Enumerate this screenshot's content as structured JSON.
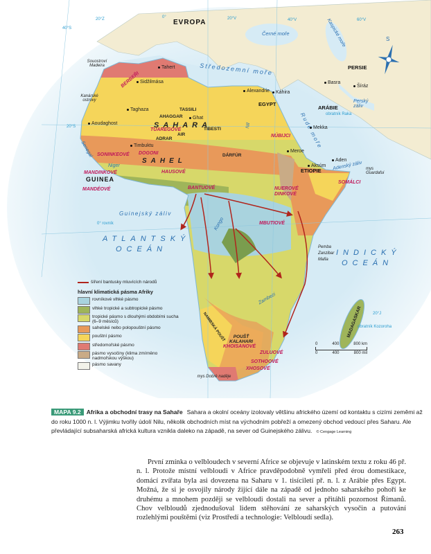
{
  "map": {
    "continents": {
      "europe": "EVROPA"
    },
    "grid_labels": {
      "lon_20w": "20°Z",
      "lon_0": "0°",
      "lon_20e": "20°V",
      "lon_40e": "40°V",
      "lon_60e": "60°V",
      "lat_40n": "40°S",
      "lat_20n": "20°S",
      "equator": "0° rovník",
      "lat_20s": "20°J",
      "tropic_cancer": "obratník Raka",
      "tropic_capricorn": "obratník Kozoroha"
    },
    "seas": {
      "mediterranean": "Středozemní moře",
      "black": "Černé moře",
      "caspian": "Kaspické moře",
      "red": "Rudé moře",
      "persian_gulf": "Perský záliv",
      "aden_gulf": "Adenský záliv",
      "guinea_gulf": "Guinejský záliv",
      "atlantic": "ATLANTSKÝ OCEÁN",
      "indian": "INDICKÝ OCEÁN"
    },
    "rivers": {
      "nile": "Nil",
      "niger": "Niger",
      "senegal": "Senegal",
      "congo": "Kongo",
      "zambezi": "Zambezi"
    },
    "regions": {
      "sahara": "SAHARA",
      "sahel": "SAHEL",
      "guinea": "GUINEA",
      "egypt": "EGYPT",
      "arabia": "ARÁBIE",
      "persia": "PERSIE",
      "ethiopia": "ETIOPIE",
      "ahaggar": "AHAGGAR",
      "tassili": "TASSILI",
      "tibesti": "TIBESTI",
      "air": "AIR",
      "adrar": "ADRAR",
      "darfur": "DÁRFÚR",
      "namib": "NAMIBSKÁ POUŠŤ",
      "kalahari": "POUŠŤ KALAHARI",
      "madagascar": "MADAGASKAR",
      "madeira": "Souostroví Madeira",
      "canary": "Kanárské ostrovy",
      "pemba": "Pemba",
      "zanzibar": "Zanzibar",
      "mafia": "Mafia",
      "guardafui": "mys Guardafui",
      "good_hope": "mys Dobré naděje"
    },
    "cities": [
      "Tahert",
      "Sidžilmása",
      "Taghaza",
      "Aoudaghost",
      "Ghat",
      "Timbuktu",
      "Alexandrie",
      "Káhira",
      "Meroe",
      "Aksúm",
      "Aden",
      "Mekka",
      "Basra",
      "Šíráz"
    ],
    "peoples": [
      "BERBEŘI",
      "TUAREGOVÉ",
      "SONINKEOVÉ",
      "DOGONI",
      "MANDINKOVÉ",
      "MANDÉOVÉ",
      "HAUSOVÉ",
      "BANTUOVÉ",
      "NÚBIJCI",
      "NUEROVÉ DINKOVÉ",
      "SOMÁLCI",
      "MBUTIOVÉ",
      "KHOISANOVÉ",
      "ZULUOVÉ",
      "SOTHOOVÉ",
      "XHOSOVÉ"
    ],
    "compass": "S",
    "scale": {
      "km": [
        "0",
        "400",
        "800 km"
      ],
      "mi": [
        "0",
        "400",
        "800 mil"
      ]
    },
    "colors": {
      "equatorial": "#a9d3de",
      "humid_tropical": "#9fb55a",
      "tropical_dry": "#d7d86a",
      "sahel": "#e8995a",
      "desert": "#f5d55a",
      "mediterranean": "#e07a72",
      "highland": "#c9ab86",
      "savanna": "#f2f2ea",
      "arrow": "#b0241c",
      "sea": "#d6ebf5",
      "land_other": "#f3ecd2"
    }
  },
  "legend": {
    "arrow_label": "šíření bantusky mluvících národů",
    "title": "hlavní klimatická pásma Afriky",
    "items": [
      "rovníkové vlhké pásmo",
      "vlhké tropické a subtropické pásmo",
      "tropické pásmo s dlouhými obdobími sucha (6–9 měsíců)",
      "sahelské nebo polopouštní pásmo",
      "pouštní pásmo",
      "středomořské pásmo",
      "pásmo vysočiny (klima zmírněno nadmořskou výškou)",
      "pásmo savany"
    ]
  },
  "caption": {
    "badge": "MAPA 9.2",
    "title": "Afrika a obchodní trasy na Sahaře",
    "text": "Sahara a okolní oceány izolovaly většinu afrického území od kontaktu s cizími zeměmi až do roku 1000 n. l. Výjimku tvořily údolí Nilu, několik obchodních míst na východním pobřeží a omezený obchod vedoucí přes Saharu. Ale převládající subsaharská africká kultura vznikla daleko na západě, na sever od Guinejského zálivu.",
    "credit": "© Cengage Learning"
  },
  "body_text": "První zmínka o velbloudech v severní Africe se objevuje v latinském textu z roku 46 př. n. l. Protože místní velbloudi v Africe pravděpodobně vymřeli před érou domestikace, domácí zvířata byla asi dovezena na Saharu v 1. tisíciletí př. n. l. z Arábie přes Egypt. Možná, že si je osvojily národy žijící dále na západě od jednoho saharského pohoří ke druhému a mnohem později se velbloudi dostali na sever a přitáhli pozornost Římanů. Chov velbloudů zjednodušoval lidem stěhování ze saharských vysočin a putování rozlehlými pouštěmi (viz Prostředí a technologie: Velbloudí sedla).",
  "page_number": "263"
}
